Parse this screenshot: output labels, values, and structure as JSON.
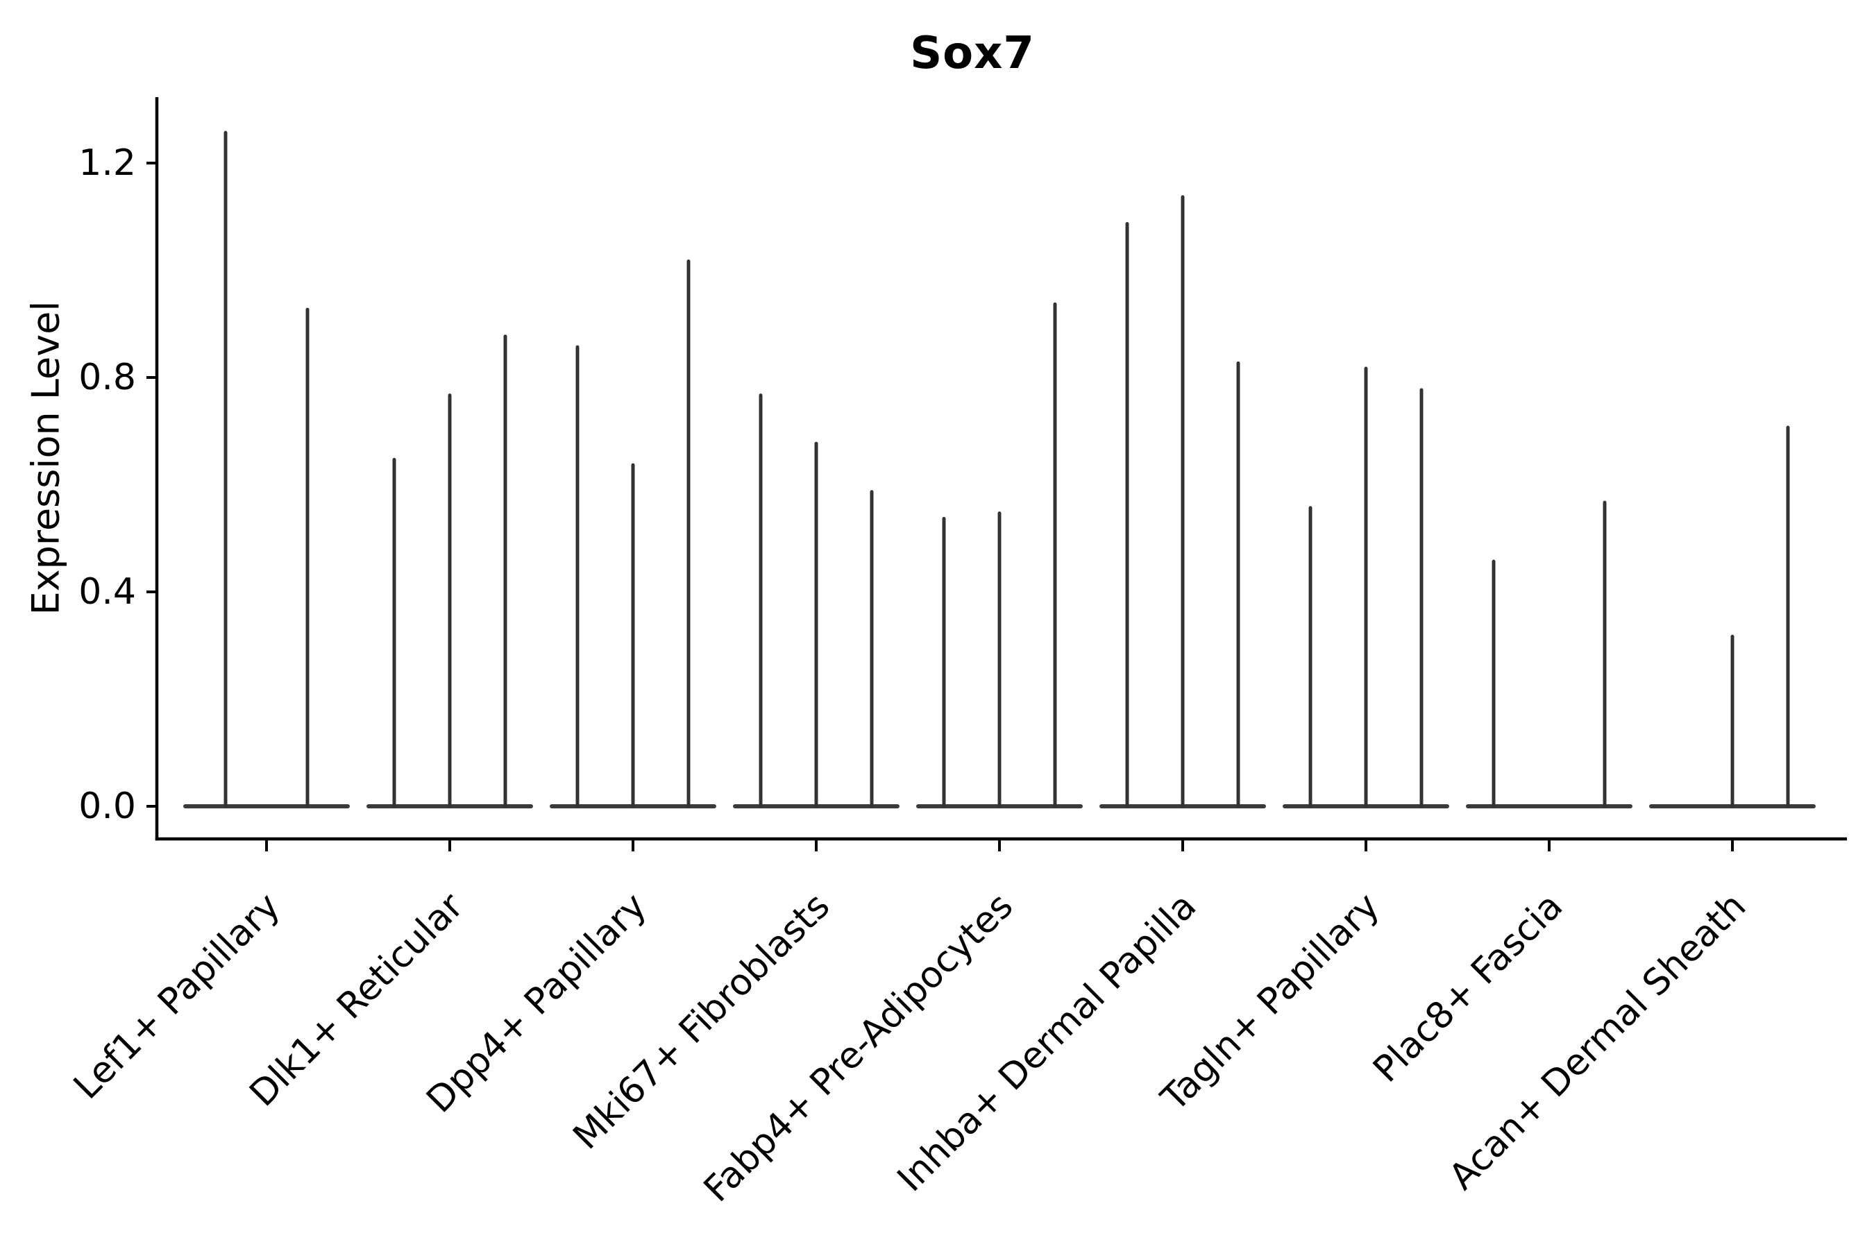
{
  "chart_data": {
    "type": "violin",
    "title": "Sox7",
    "ylabel": "Expression Level",
    "xlabel": "",
    "ylim": [
      -0.06,
      1.32
    ],
    "yticks": [
      0.0,
      0.4,
      0.8,
      1.2
    ],
    "ytick_labels": [
      "0.0",
      "0.4",
      "0.8",
      "1.2"
    ],
    "grid": false,
    "legend": "none",
    "violin_color": "#333333",
    "baseline_color": "#3a3a3a",
    "axis_color": "#000000",
    "categories": [
      "Lef1+ Papillary",
      "Dlk1+ Reticular",
      "Dpp4+ Papillary",
      "Mki67+ Fibroblasts",
      "Fabp4+ Pre-Adipocytes",
      "Inhba+ Dermal Papilla",
      "Tagln+ Papillary",
      "Plac8+ Fascia",
      "Acan+ Dermal Sheath"
    ],
    "groups": [
      {
        "category": "Lef1+ Papillary",
        "violins": [
          {
            "x_offset": -59,
            "max": 1.26
          },
          {
            "x_offset": 59,
            "max": 0.93
          }
        ]
      },
      {
        "category": "Dlk1+ Reticular",
        "violins": [
          {
            "x_offset": -80,
            "max": 0.65
          },
          {
            "x_offset": 0,
            "max": 0.77
          },
          {
            "x_offset": 80,
            "max": 0.88
          }
        ]
      },
      {
        "category": "Dpp4+ Papillary",
        "violins": [
          {
            "x_offset": -80,
            "max": 0.86
          },
          {
            "x_offset": 0,
            "max": 0.64
          },
          {
            "x_offset": 80,
            "max": 1.02
          }
        ]
      },
      {
        "category": "Mki67+ Fibroblasts",
        "violins": [
          {
            "x_offset": -80,
            "max": 0.77
          },
          {
            "x_offset": 0,
            "max": 0.68
          },
          {
            "x_offset": 80,
            "max": 0.59
          }
        ]
      },
      {
        "category": "Fabp4+ Pre-Adipocytes",
        "violins": [
          {
            "x_offset": -80,
            "max": 0.54
          },
          {
            "x_offset": 0,
            "max": 0.55
          },
          {
            "x_offset": 80,
            "max": 0.94
          }
        ]
      },
      {
        "category": "Inhba+ Dermal Papilla",
        "violins": [
          {
            "x_offset": -80,
            "max": 1.09
          },
          {
            "x_offset": 0,
            "max": 1.14
          },
          {
            "x_offset": 80,
            "max": 0.83
          }
        ]
      },
      {
        "category": "Tagln+ Papillary",
        "violins": [
          {
            "x_offset": -80,
            "max": 0.56
          },
          {
            "x_offset": 0,
            "max": 0.82
          },
          {
            "x_offset": 80,
            "max": 0.78
          }
        ]
      },
      {
        "category": "Plac8+ Fascia",
        "violins": [
          {
            "x_offset": -80,
            "max": 0.46
          },
          {
            "x_offset": 80,
            "max": 0.57
          }
        ]
      },
      {
        "category": "Acan+ Dermal Sheath",
        "violins": [
          {
            "x_offset": 0,
            "max": 0.32
          },
          {
            "x_offset": 80,
            "max": 0.71
          }
        ]
      }
    ]
  }
}
